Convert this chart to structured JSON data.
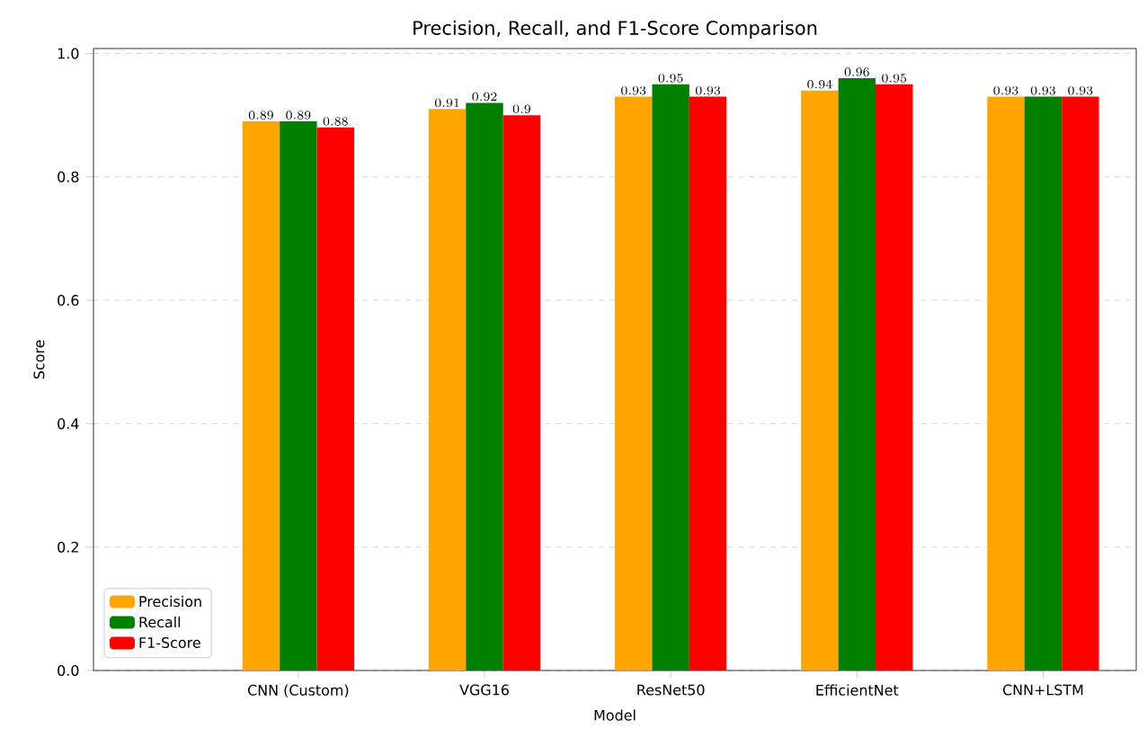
{
  "chart_data": {
    "type": "bar",
    "title": "Precision, Recall, and F1-Score Comparison",
    "xlabel": "Model",
    "ylabel": "Score",
    "categories": [
      "CNN (Custom)",
      "VGG16",
      "ResNet50",
      "EfficientNet",
      "CNN+LSTM"
    ],
    "series": [
      {
        "name": "Precision",
        "color": "#ffa500",
        "values": [
          0.89,
          0.91,
          0.93,
          0.94,
          0.93
        ]
      },
      {
        "name": "Recall",
        "color": "#008000",
        "values": [
          0.89,
          0.92,
          0.95,
          0.96,
          0.93
        ]
      },
      {
        "name": "F1-Score",
        "color": "#ff0000",
        "values": [
          0.88,
          0.9,
          0.93,
          0.95,
          0.93
        ]
      }
    ],
    "ylim": [
      0,
      1.008
    ],
    "yticks": [
      {
        "value": 0,
        "label": "0.0"
      },
      {
        "value": 0.2,
        "label": "0.2"
      },
      {
        "value": 0.4,
        "label": "0.4"
      },
      {
        "value": 0.6,
        "label": "0.6"
      },
      {
        "value": 0.8,
        "label": "0.8"
      },
      {
        "value": 1.0,
        "label": "1.0"
      }
    ],
    "grid": "y",
    "legend": "bottom left",
    "data_labels": true
  }
}
